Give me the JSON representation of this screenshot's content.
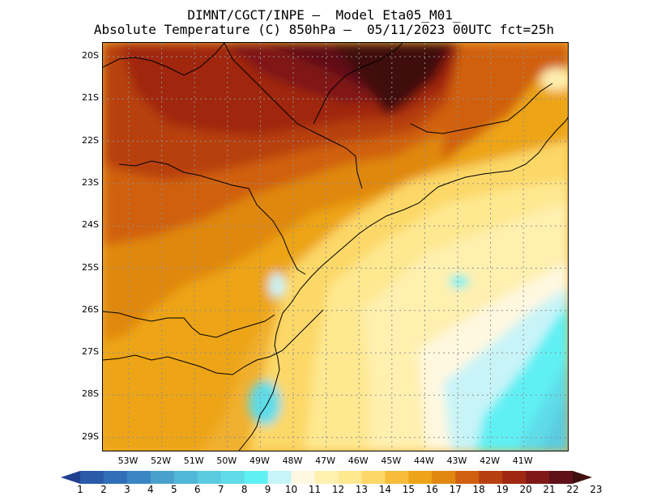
{
  "header": {
    "line1": "DIMNT/CGCT/INPE –  Model Eta05_M01_",
    "line2": "Absolute Temperature (C) 850hPa –  05/11/2023 00UTC fct=25h"
  },
  "map": {
    "lat_labels": [
      "20S",
      "21S",
      "22S",
      "23S",
      "24S",
      "25S",
      "26S",
      "27S",
      "28S",
      "29S"
    ],
    "lon_labels": [
      "53W",
      "52W",
      "51W",
      "50W",
      "49W",
      "48W",
      "47W",
      "46W",
      "45W",
      "44W",
      "43W",
      "42W",
      "41W"
    ],
    "grid": "dotted",
    "background": "#f0b030"
  },
  "colorbar": {
    "labels": [
      "1",
      "2",
      "3",
      "4",
      "5",
      "6",
      "7",
      "8",
      "9",
      "10",
      "11",
      "12",
      "13",
      "14",
      "15",
      "16",
      "17",
      "18",
      "19",
      "20",
      "21",
      "22",
      "23"
    ],
    "colors": [
      "#1f3f8f",
      "#2a5aa8",
      "#3170b8",
      "#3a86c4",
      "#4aa0cc",
      "#52b6d8",
      "#5acbe0",
      "#5fdce8",
      "#5ff0f4",
      "#c8f4f8",
      "#fff8e0",
      "#fff0b0",
      "#fee890",
      "#fcd868",
      "#f6bc3a",
      "#eda418",
      "#e08810",
      "#d06010",
      "#b84010",
      "#a02810",
      "#801818",
      "#601018",
      "#401010"
    ]
  }
}
